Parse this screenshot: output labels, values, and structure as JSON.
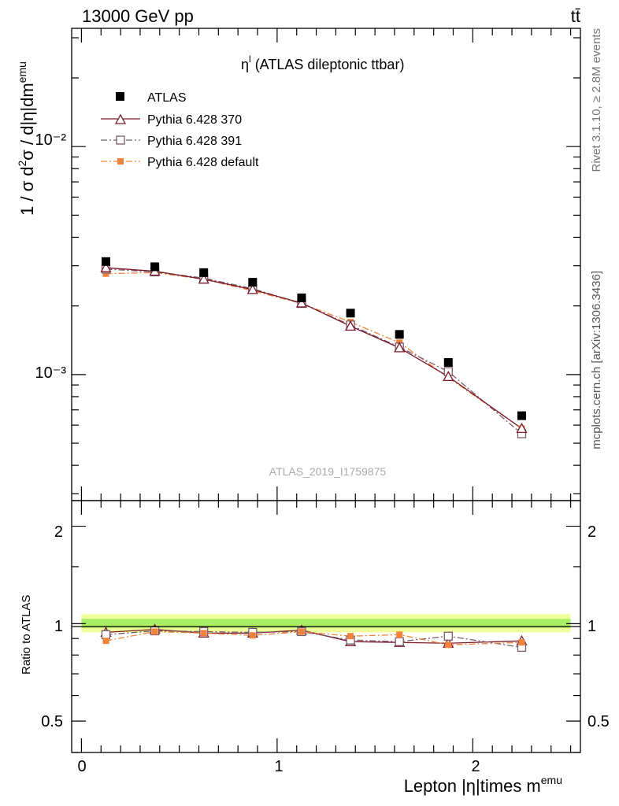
{
  "header": {
    "energy_label": "13000 GeV pp",
    "process_label": "tt̄"
  },
  "chart_data": [
    {
      "type": "scatter",
      "panel": "main",
      "title": "η",
      "title_sup": "l",
      "title_rest": " (ATLAS dileptonic ttbar)",
      "ylabel": "1 / σ d²σ / d|η|dm^emu",
      "yscale": "log",
      "ylim": [
        0.00028,
        0.033
      ],
      "xlim": [
        -0.05,
        2.55
      ],
      "ytick_labels": [
        "10⁻³",
        "10⁻²"
      ],
      "x": [
        0.125,
        0.375,
        0.625,
        0.875,
        1.125,
        1.375,
        1.625,
        1.875,
        2.25
      ],
      "series": [
        {
          "name": "ATLAS",
          "color": "#000000",
          "marker": "filled-square",
          "values": [
            0.00313,
            0.00297,
            0.0028,
            0.00254,
            0.00217,
            0.00186,
            0.0015,
            0.00113,
            0.00066
          ]
        },
        {
          "name": "Pythia 6.428 370",
          "color": "#7a1a2a",
          "marker": "open-triangle",
          "line": "solid",
          "values": [
            0.00294,
            0.00284,
            0.00262,
            0.00236,
            0.00206,
            0.00163,
            0.00131,
            0.00098,
            0.00058
          ]
        },
        {
          "name": "Pythia 6.428 391",
          "color": "#7a5a6a",
          "marker": "open-square",
          "line": "dashdot",
          "values": [
            0.0029,
            0.00282,
            0.00265,
            0.00238,
            0.00205,
            0.00165,
            0.00132,
            0.00103,
            0.00055
          ]
        },
        {
          "name": "Pythia 6.428 default",
          "color": "#f0823a",
          "marker": "filled-small-square",
          "line": "dashdot",
          "values": [
            0.00277,
            0.0028,
            0.00262,
            0.00233,
            0.00205,
            0.0017,
            0.00138,
            0.00097,
            0.00058
          ]
        }
      ],
      "legend_position": "top-left",
      "watermark": "ATLAS_2019_I1759875",
      "side_label_top": "Rivet 3.1.10, ≥ 2.8M events",
      "side_label_bottom": "mcplots.cern.ch [arXiv:1306.3436]"
    },
    {
      "type": "line",
      "panel": "ratio",
      "ylabel": "Ratio to ATLAS",
      "xlabel": "Lepton |η|times m^emu",
      "ylim": [
        0.4,
        2.4
      ],
      "xlim": [
        -0.05,
        2.55
      ],
      "xticks": [
        0,
        1,
        2
      ],
      "ytick_labels": [
        "0.5",
        "1",
        "2"
      ],
      "band": {
        "color_inner": "#aaee66",
        "color_outer": "#eeff99"
      },
      "series": [
        {
          "name": "Pythia 6.428 370",
          "values": [
            0.94,
            0.96,
            0.935,
            0.935,
            0.955,
            0.88,
            0.875,
            0.87,
            0.885
          ]
        },
        {
          "name": "Pythia 6.428 391",
          "values": [
            0.925,
            0.95,
            0.945,
            0.94,
            0.945,
            0.89,
            0.88,
            0.915,
            0.845
          ]
        },
        {
          "name": "Pythia 6.428 default",
          "values": [
            0.885,
            0.945,
            0.935,
            0.92,
            0.945,
            0.915,
            0.925,
            0.86,
            0.875
          ]
        }
      ]
    }
  ]
}
